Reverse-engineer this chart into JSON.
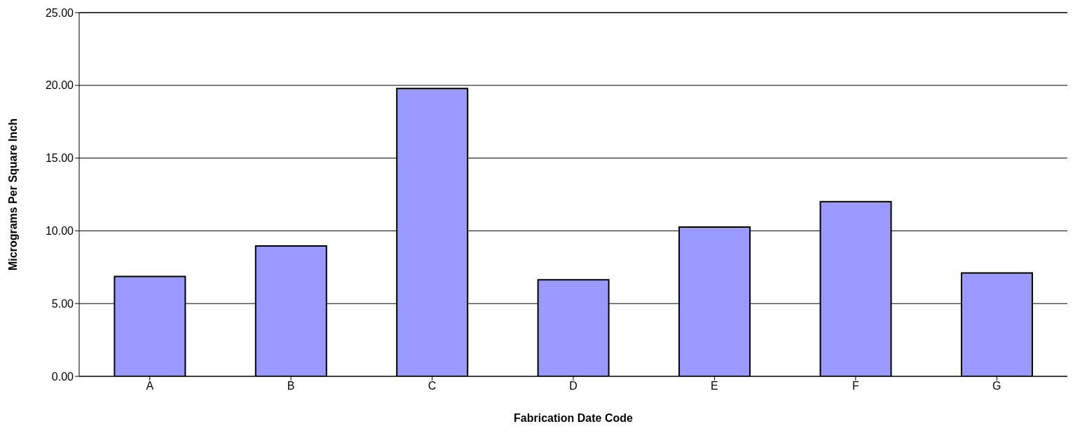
{
  "chart_data": {
    "type": "bar",
    "xlabel": "Fabrication Date Code",
    "ylabel": "Micrograms Per Square Inch",
    "categories": [
      "A",
      "B",
      "C",
      "D",
      "E",
      "F",
      "G"
    ],
    "values": [
      6.87,
      8.96,
      19.79,
      6.63,
      10.26,
      12.01,
      7.11
    ],
    "color": "#9999ff",
    "ylim": [
      0,
      25
    ],
    "yticks": [
      {
        "value": 0,
        "label": "0.00"
      },
      {
        "value": 5,
        "label": "5.00"
      },
      {
        "value": 10,
        "label": "10.00"
      },
      {
        "value": 15,
        "label": "15.00"
      },
      {
        "value": 20,
        "label": "20.00"
      },
      {
        "value": 25,
        "label": "25.00"
      }
    ],
    "grid": "y"
  }
}
